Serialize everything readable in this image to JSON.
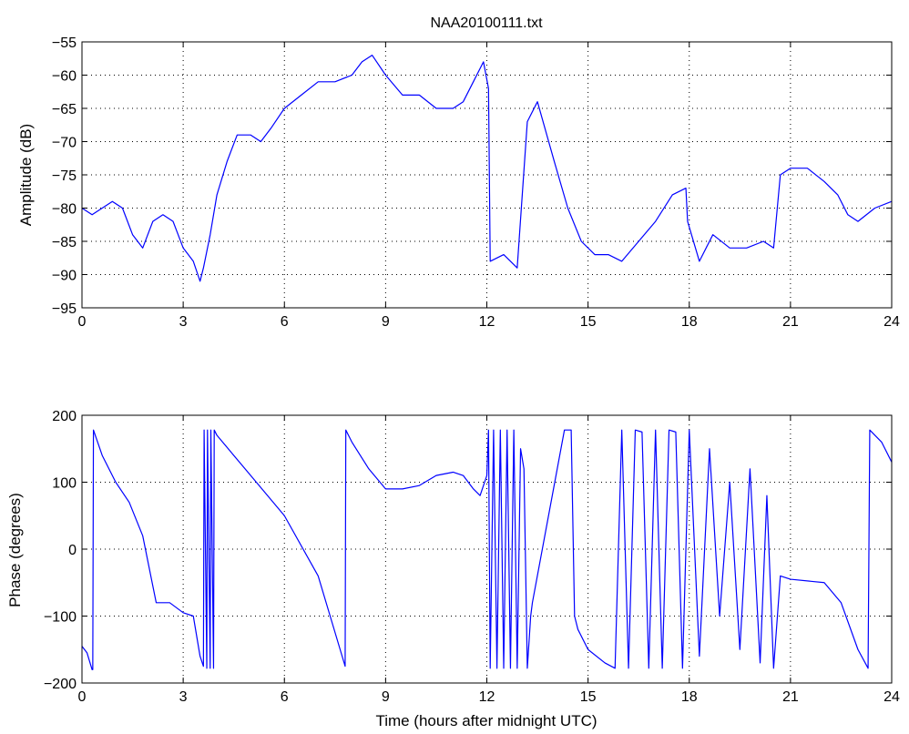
{
  "figure": {
    "background": "#ffffff",
    "line_color": "#0000ff",
    "axes_color": "#000000",
    "grid_color": "#000000"
  },
  "chart_data": [
    {
      "type": "line",
      "title": "NAA20100111.txt",
      "xlabel": "",
      "ylabel": "Amplitude (dB)",
      "xlim": [
        0,
        24
      ],
      "ylim": [
        -95,
        -55
      ],
      "xticks": [
        0,
        3,
        6,
        9,
        12,
        15,
        18,
        21,
        24
      ],
      "yticks": [
        -95,
        -90,
        -85,
        -80,
        -75,
        -70,
        -65,
        -60,
        -55
      ],
      "grid": true,
      "series": [
        {
          "x": [
            0,
            0.3,
            0.6,
            0.9,
            1.2,
            1.5,
            1.8,
            2.1,
            2.4,
            2.7,
            3.0,
            3.3,
            3.5,
            3.6,
            3.8,
            4.0,
            4.3,
            4.6,
            5.0,
            5.3,
            5.6,
            6.0,
            6.5,
            7.0,
            7.5,
            8.0,
            8.3,
            8.6,
            9.0,
            9.5,
            10.0,
            10.5,
            11.0,
            11.3,
            11.6,
            11.9,
            12.05,
            12.1,
            12.5,
            12.9,
            13.2,
            13.5,
            14.0,
            14.4,
            14.8,
            15.2,
            15.6,
            16.0,
            16.5,
            17.0,
            17.5,
            17.9,
            17.95,
            18.3,
            18.7,
            19.2,
            19.7,
            20.2,
            20.5,
            20.7,
            21.0,
            21.5,
            22.0,
            22.4,
            22.7,
            23.0,
            23.5,
            24.0
          ],
          "y": [
            -80,
            -81,
            -80,
            -79,
            -80,
            -84,
            -86,
            -82,
            -81,
            -82,
            -86,
            -88,
            -91,
            -89,
            -84,
            -78,
            -73,
            -69,
            -69,
            -70,
            -68,
            -65,
            -63,
            -61,
            -61,
            -60,
            -58,
            -57,
            -60,
            -63,
            -63,
            -65,
            -65,
            -64,
            -61,
            -58,
            -62,
            -88,
            -87,
            -89,
            -67,
            -64,
            -73,
            -80,
            -85,
            -87,
            -87,
            -88,
            -85,
            -82,
            -78,
            -77,
            -82,
            -88,
            -84,
            -86,
            -86,
            -85,
            -86,
            -75,
            -74,
            -74,
            -76,
            -78,
            -81,
            -82,
            -80,
            -79
          ]
        }
      ]
    },
    {
      "type": "line",
      "title": "",
      "xlabel": "Time (hours after midnight UTC)",
      "ylabel": "Phase (degrees)",
      "xlim": [
        0,
        24
      ],
      "ylim": [
        -200,
        200
      ],
      "xticks": [
        0,
        3,
        6,
        9,
        12,
        15,
        18,
        21,
        24
      ],
      "yticks": [
        -200,
        -100,
        0,
        100,
        200
      ],
      "grid": true,
      "series": [
        {
          "x": [
            0,
            0.15,
            0.3,
            0.32,
            0.34,
            0.6,
            1.0,
            1.4,
            1.8,
            2.0,
            2.2,
            2.6,
            3.0,
            3.3,
            3.5,
            3.6,
            3.62,
            3.7,
            3.72,
            3.8,
            3.82,
            3.9,
            3.92,
            4.0,
            5.0,
            6.0,
            7.0,
            7.8,
            7.82,
            8.0,
            8.5,
            9.0,
            9.5,
            10.0,
            10.5,
            11.0,
            11.3,
            11.6,
            11.8,
            12.0,
            12.05,
            12.1,
            12.2,
            12.3,
            12.4,
            12.5,
            12.6,
            12.7,
            12.8,
            12.9,
            13.0,
            13.1,
            13.2,
            13.3,
            13.35,
            14.3,
            14.5,
            14.6,
            14.7,
            15.0,
            15.5,
            15.8,
            16.0,
            16.2,
            16.4,
            16.6,
            16.8,
            17.0,
            17.2,
            17.4,
            17.6,
            17.8,
            18.0,
            18.3,
            18.6,
            18.9,
            19.2,
            19.5,
            19.8,
            20.1,
            20.3,
            20.5,
            20.7,
            21.0,
            22.0,
            22.5,
            23.0,
            23.3,
            23.35,
            23.7,
            24.0
          ],
          "y": [
            -145,
            -155,
            -180,
            -180,
            178,
            140,
            100,
            70,
            20,
            -30,
            -80,
            -80,
            -95,
            -100,
            -160,
            -175,
            178,
            -178,
            178,
            -178,
            178,
            -178,
            178,
            170,
            110,
            50,
            -40,
            -175,
            178,
            160,
            120,
            90,
            90,
            95,
            110,
            115,
            110,
            90,
            80,
            110,
            178,
            -178,
            178,
            -178,
            178,
            -178,
            178,
            -178,
            178,
            -178,
            150,
            120,
            -178,
            -100,
            -80,
            178,
            178,
            -100,
            -120,
            -150,
            -170,
            -178,
            178,
            -178,
            178,
            175,
            -178,
            178,
            -178,
            178,
            175,
            -178,
            178,
            -160,
            150,
            -100,
            100,
            -150,
            120,
            -170,
            80,
            -178,
            -40,
            -45,
            -50,
            -80,
            -150,
            -178,
            178,
            160,
            130
          ]
        }
      ]
    }
  ]
}
